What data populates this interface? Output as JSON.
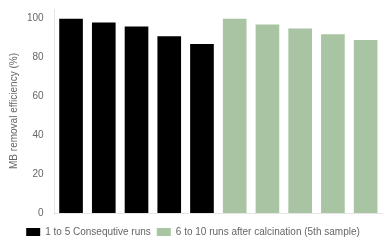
{
  "chart_data": {
    "type": "bar",
    "categories": [
      null,
      null,
      null,
      null,
      null,
      null,
      null,
      null,
      null,
      null
    ],
    "series": [
      {
        "name": "1 to 5 Consequtive runs",
        "color": "#000000",
        "values": [
          100,
          98,
          96,
          91,
          87,
          null,
          null,
          null,
          null,
          null
        ]
      },
      {
        "name": "6 to 10 runs after calcination (5th sample)",
        "color": "#a8c4a2",
        "values": [
          null,
          null,
          null,
          null,
          null,
          100,
          97,
          95,
          92,
          89
        ]
      }
    ],
    "y_label": "MB removal efficiency (%)",
    "ylim": [
      0,
      105
    ],
    "yticks": [
      0,
      20,
      40,
      60,
      80,
      100
    ],
    "grid": false,
    "legend": "bottom",
    "tick_labels": "y"
  }
}
